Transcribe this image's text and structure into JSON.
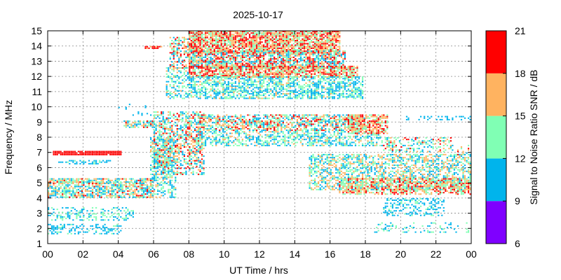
{
  "chart_data": {
    "type": "heatmap",
    "title": "2025-10-17",
    "xlabel": "UT Time / hrs",
    "ylabel": "Frequency / MHz",
    "xlim": [
      0,
      24
    ],
    "ylim": [
      1,
      15
    ],
    "x_ticks": [
      "00",
      "02",
      "04",
      "06",
      "08",
      "10",
      "12",
      "14",
      "16",
      "18",
      "20",
      "22",
      "00"
    ],
    "y_ticks": [
      "1",
      "2",
      "3",
      "4",
      "5",
      "6",
      "7",
      "8",
      "9",
      "10",
      "11",
      "12",
      "13",
      "14",
      "15"
    ],
    "grid": true,
    "colorbar": {
      "label": "Signal to Noise Ratio SNR / dB",
      "ticks": [
        "6",
        "9",
        "12",
        "15",
        "18",
        "21"
      ],
      "bins": [
        {
          "from": 6,
          "to": 9,
          "color": "#7f00ff"
        },
        {
          "from": 9,
          "to": 12,
          "color": "#00b4ec"
        },
        {
          "from": 12,
          "to": 15,
          "color": "#80ffb4"
        },
        {
          "from": 15,
          "to": 18,
          "color": "#ffb360"
        },
        {
          "from": 18,
          "to": 21,
          "color": "#ff0000"
        }
      ]
    },
    "regions": [
      {
        "t": [
          0.0,
          4.2
        ],
        "f": [
          1.6,
          2.3
        ],
        "density": 0.35,
        "snr": [
          9,
          12.5
        ]
      },
      {
        "t": [
          0.0,
          4.8
        ],
        "f": [
          2.5,
          3.4
        ],
        "density": 0.35,
        "snr": [
          9,
          15
        ]
      },
      {
        "t": [
          0.0,
          5.9
        ],
        "f": [
          4.0,
          5.2
        ],
        "density": 0.7,
        "snr": [
          9,
          19
        ]
      },
      {
        "t": [
          0.3,
          4.2
        ],
        "f": [
          6.8,
          7.0
        ],
        "density": 0.95,
        "snr": [
          18.5,
          21
        ]
      },
      {
        "t": [
          0.6,
          3.6
        ],
        "f": [
          6.2,
          6.4
        ],
        "density": 0.4,
        "snr": [
          9,
          13
        ]
      },
      {
        "t": [
          4.3,
          5.9
        ],
        "f": [
          8.6,
          9.0
        ],
        "density": 0.7,
        "snr": [
          9,
          19
        ]
      },
      {
        "t": [
          5.8,
          7.2
        ],
        "f": [
          4.0,
          7.9
        ],
        "density": 0.5,
        "snr": [
          9,
          16
        ]
      },
      {
        "t": [
          6.0,
          8.8
        ],
        "f": [
          5.5,
          9.6
        ],
        "density": 0.55,
        "snr": [
          9,
          20
        ]
      },
      {
        "t": [
          6.7,
          7.9
        ],
        "f": [
          10.5,
          12.5
        ],
        "density": 0.45,
        "snr": [
          9,
          16
        ]
      },
      {
        "t": [
          6.9,
          8.3
        ],
        "f": [
          12.5,
          14.5
        ],
        "density": 0.55,
        "snr": [
          9,
          21
        ]
      },
      {
        "t": [
          8.0,
          16.5
        ],
        "f": [
          13.5,
          15.0
        ],
        "density": 0.85,
        "snr": [
          13,
          21
        ]
      },
      {
        "t": [
          8.0,
          16.8
        ],
        "f": [
          12.5,
          13.6
        ],
        "density": 0.75,
        "snr": [
          9,
          21
        ]
      },
      {
        "t": [
          8.0,
          17.5
        ],
        "f": [
          11.9,
          12.6
        ],
        "density": 0.8,
        "snr": [
          13,
          21
        ]
      },
      {
        "t": [
          8.0,
          17.8
        ],
        "f": [
          10.5,
          11.9
        ],
        "density": 0.6,
        "snr": [
          9,
          15.5
        ]
      },
      {
        "t": [
          8.5,
          18.0
        ],
        "f": [
          8.4,
          9.4
        ],
        "density": 0.65,
        "snr": [
          9,
          20
        ]
      },
      {
        "t": [
          8.5,
          19.0
        ],
        "f": [
          7.4,
          8.3
        ],
        "density": 0.5,
        "snr": [
          9,
          16
        ]
      },
      {
        "t": [
          17.0,
          19.3
        ],
        "f": [
          8.2,
          9.4
        ],
        "density": 0.75,
        "snr": [
          13,
          21
        ]
      },
      {
        "t": [
          14.8,
          24.0
        ],
        "f": [
          4.5,
          6.8
        ],
        "density": 0.55,
        "snr": [
          9,
          18
        ]
      },
      {
        "t": [
          16.5,
          24.0
        ],
        "f": [
          4.2,
          5.2
        ],
        "density": 0.6,
        "snr": [
          12,
          21
        ]
      },
      {
        "t": [
          19.0,
          22.5
        ],
        "f": [
          2.8,
          4.0
        ],
        "density": 0.35,
        "snr": [
          9,
          13
        ]
      },
      {
        "t": [
          18.5,
          24.0
        ],
        "f": [
          1.7,
          2.4
        ],
        "density": 0.15,
        "snr": [
          9,
          14
        ]
      },
      {
        "t": [
          20.3,
          24.0
        ],
        "f": [
          9.1,
          9.3
        ],
        "density": 0.3,
        "snr": [
          9,
          11
        ]
      },
      {
        "t": [
          19.0,
          23.0
        ],
        "f": [
          7.0,
          7.9
        ],
        "density": 0.35,
        "snr": [
          9,
          20
        ]
      },
      {
        "t": [
          5.5,
          6.4
        ],
        "f": [
          13.8,
          14.0
        ],
        "density": 0.8,
        "snr": [
          16,
          21
        ]
      },
      {
        "t": [
          4.0,
          6.2
        ],
        "f": [
          9.4,
          10.1
        ],
        "density": 0.08,
        "snr": [
          9,
          11
        ]
      },
      {
        "t": [
          23.2,
          24.0
        ],
        "f": [
          6.8,
          7.5
        ],
        "density": 0.3,
        "snr": [
          9,
          20
        ]
      }
    ]
  }
}
